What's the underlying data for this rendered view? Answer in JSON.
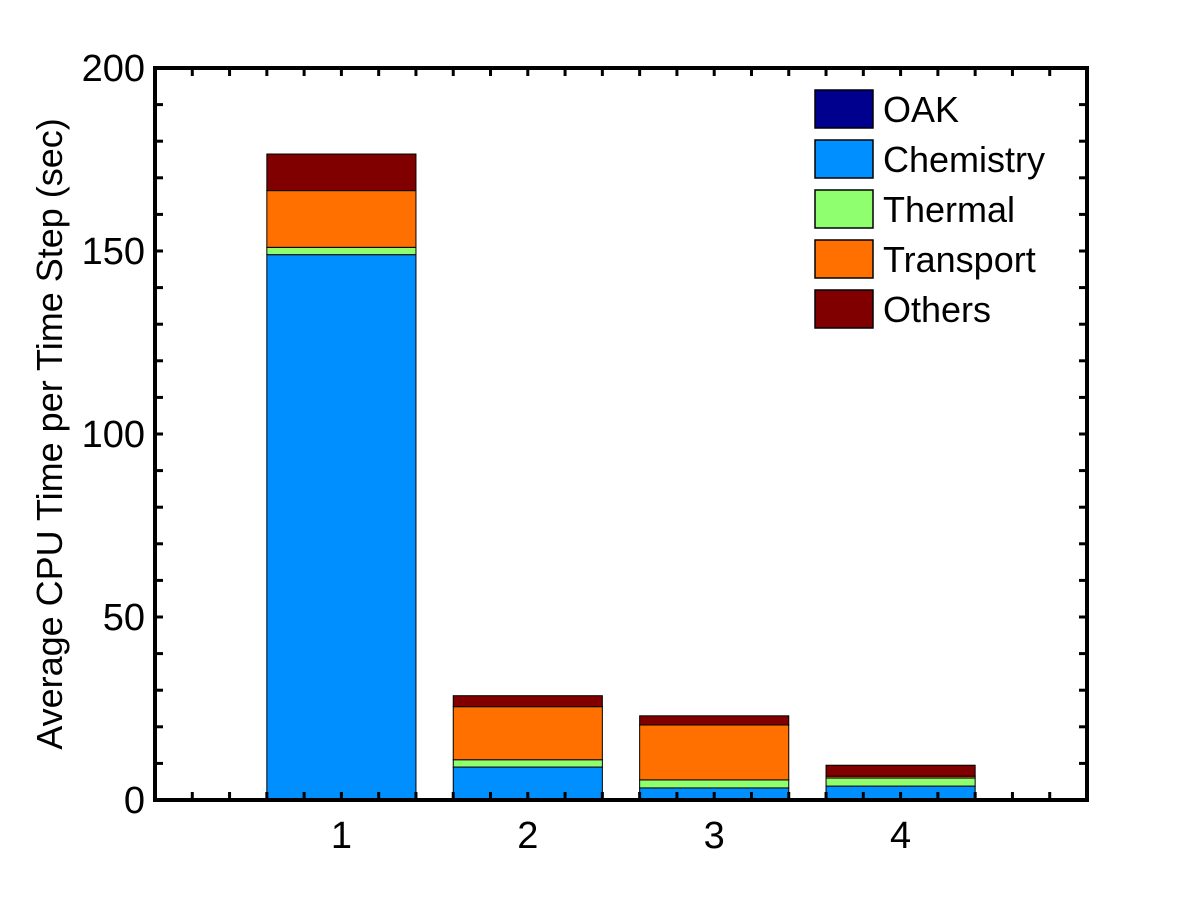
{
  "chart_data": {
    "type": "bar",
    "stacked": true,
    "title": "",
    "xlabel": "",
    "ylabel": "Average CPU Time per Time Step (sec)",
    "categories": [
      "1",
      "2",
      "3",
      "4"
    ],
    "xlim": [
      0,
      5
    ],
    "ylim": [
      0,
      200
    ],
    "yticks": [
      0,
      50,
      100,
      150,
      200
    ],
    "grid": false,
    "legend_position": "top-right",
    "series": [
      {
        "name": "OAK",
        "color": "#00008f",
        "values": [
          0.3,
          0.3,
          0.3,
          0.3
        ]
      },
      {
        "name": "Chemistry",
        "color": "#008fff",
        "values": [
          148.7,
          8.7,
          3.0,
          3.5
        ]
      },
      {
        "name": "Thermal",
        "color": "#8fff70",
        "values": [
          2.0,
          2.0,
          2.2,
          2.2
        ]
      },
      {
        "name": "Transport",
        "color": "#ff7000",
        "values": [
          15.5,
          14.5,
          15.0,
          0.5
        ]
      },
      {
        "name": "Others",
        "color": "#800000",
        "values": [
          10.0,
          3.0,
          2.5,
          3.0
        ]
      }
    ]
  }
}
